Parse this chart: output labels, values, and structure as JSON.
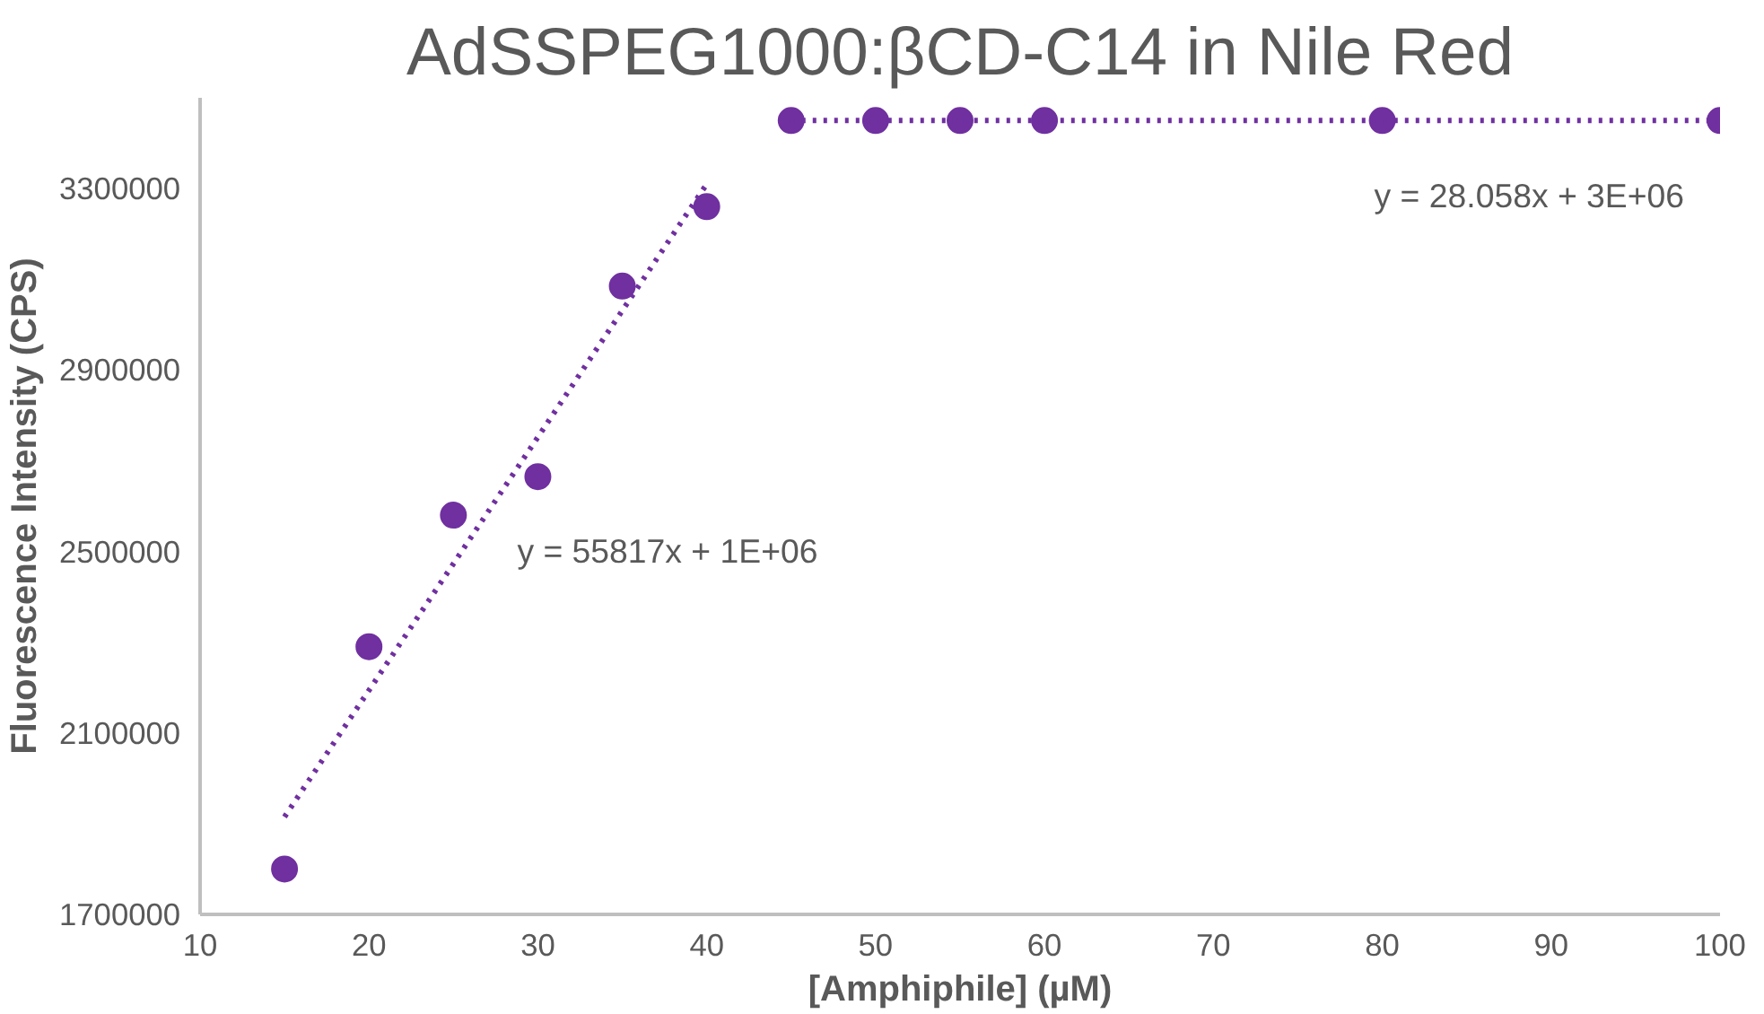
{
  "chart_data": {
    "type": "scatter",
    "title": "AdSSPEG1000:βCD-C14 in Nile Red",
    "xlabel": "[Amphiphile] (µM)",
    "ylabel": "Fluorescence Intensity (CPS)",
    "x": [
      15,
      20,
      25,
      30,
      35,
      40,
      45,
      50,
      55,
      60,
      80,
      100
    ],
    "series": [
      {
        "color": "#7030a0",
        "marker": "circle",
        "values": [
          1800000,
          2290000,
          2580000,
          2665000,
          3085000,
          3260000,
          3450000,
          3450000,
          3450000,
          3450000,
          3450000,
          3450000
        ]
      },
      {
        "type": "line",
        "color": "#7030a0",
        "line_style": "dotted",
        "marker": "none",
        "x": [
          15,
          40
        ],
        "values": [
          1915000,
          3310000
        ]
      },
      {
        "type": "line",
        "color": "#7030a0",
        "line_style": "dotted",
        "marker": "none",
        "x": [
          45,
          100
        ],
        "values": [
          3450000,
          3450000
        ]
      }
    ],
    "annotations": [
      "y = 55817x + 1E+06",
      "y = 28.058x + 3E+06"
    ],
    "xlim": [
      10,
      100
    ],
    "xticks": [
      10,
      20,
      30,
      40,
      50,
      60,
      70,
      80,
      90,
      100
    ],
    "ylim": [
      1700000,
      3500000
    ],
    "yticks": [
      1700000,
      2100000,
      2500000,
      2900000,
      3300000
    ],
    "grid": false
  }
}
